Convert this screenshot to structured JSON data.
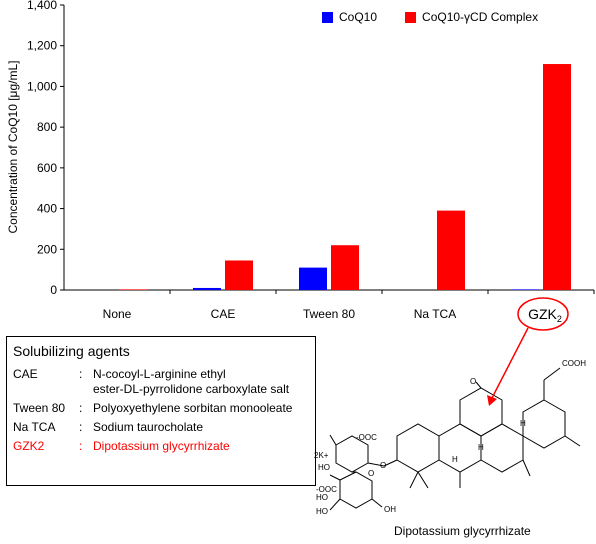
{
  "chart_data": {
    "type": "bar",
    "categories": [
      "None",
      "CAE",
      "Tween 80",
      "Na TCA",
      "GZK2"
    ],
    "ylabel": "Concentration of CoQ10 [μg/mL]",
    "ylim": [
      0,
      1400
    ],
    "yticks": [
      "0",
      "200",
      "400",
      "600",
      "800",
      "1,000",
      "1,200",
      "1,400"
    ],
    "ytick_values": [
      0,
      200,
      400,
      600,
      800,
      1000,
      1200,
      1400
    ],
    "legend_position": "top-right",
    "grid": false,
    "series": [
      {
        "name": "CoQ10",
        "color": "#0000ff",
        "values": [
          0,
          10,
          110,
          0,
          3
        ]
      },
      {
        "name": "CoQ10-γCD Complex",
        "color": "#ff0000",
        "values": [
          3,
          145,
          220,
          390,
          1110
        ]
      }
    ],
    "highlight_category": "GZK2",
    "highlight_color": "#ff0000"
  },
  "agents": {
    "title": "Solubilizing agents",
    "items": [
      {
        "abbr": "CAE",
        "desc_line1": "N-cocoyl-L-arginine ethyl",
        "desc_line2": "ester-DL-pyrrolidone carboxylate salt"
      },
      {
        "abbr": "Tween 80",
        "desc_line1": "Polyoxyethylene sorbitan monooleate",
        "desc_line2": ""
      },
      {
        "abbr": "Na TCA",
        "desc_line1": "Sodium taurocholate",
        "desc_line2": ""
      },
      {
        "abbr": "GZK2",
        "desc_line1": "Dipotassium glycyrrhizate",
        "desc_line2": ""
      }
    ],
    "separator": ":"
  },
  "molecule": {
    "caption": "Dipotassium glycyrrhizate",
    "labels": {
      "cooh_top": "COOH",
      "coo1": "-OOC",
      "coo2": "-OOC",
      "k": "2K+",
      "ho1": "HO",
      "ho2": "HO",
      "ho3": "HO",
      "oh1": "OH",
      "oh2": "OH",
      "o1": "O",
      "o2": "O",
      "o3": "O",
      "o4": "O",
      "o_keto": "O",
      "h1": "H",
      "h2": "H",
      "h3": "H"
    }
  }
}
